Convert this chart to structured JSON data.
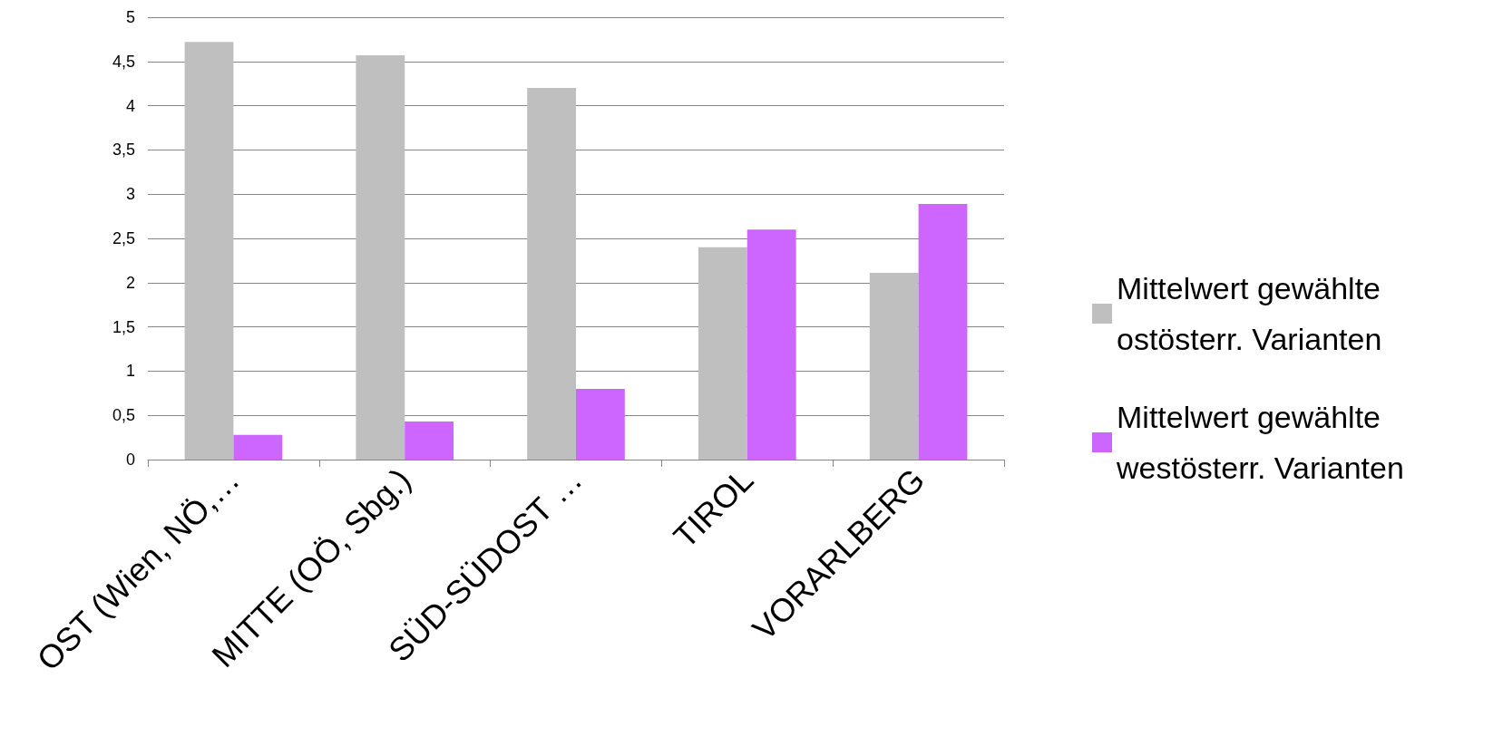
{
  "chart_data": {
    "type": "bar",
    "categories": [
      "OST (Wien, NÖ,…",
      "MITTE (OÖ, Sbg.)",
      "SÜD-SÜDOST …",
      "TIROL",
      "VORARLBERG"
    ],
    "series": [
      {
        "name": "Mittelwert gewählte ostösterr. Varianten",
        "color": "#bfbfbf",
        "values": [
          4.72,
          4.57,
          4.2,
          2.4,
          2.11
        ]
      },
      {
        "name": "Mittelwert gewählte westösterr. Varianten",
        "color": "#cc66ff",
        "values": [
          0.28,
          0.43,
          0.8,
          2.6,
          2.89
        ]
      }
    ],
    "ylim": [
      0,
      5
    ],
    "yticks": [
      0,
      {
        "value": 0.5,
        "label": "0,5"
      },
      1,
      {
        "value": 1.5,
        "label": "1,5"
      },
      2,
      {
        "value": 2.5,
        "label": "2,5"
      },
      3,
      {
        "value": 3.5,
        "label": "3,5"
      },
      4,
      {
        "value": 4.5,
        "label": "4,5"
      },
      5
    ],
    "grid": "y",
    "legend": "right"
  }
}
